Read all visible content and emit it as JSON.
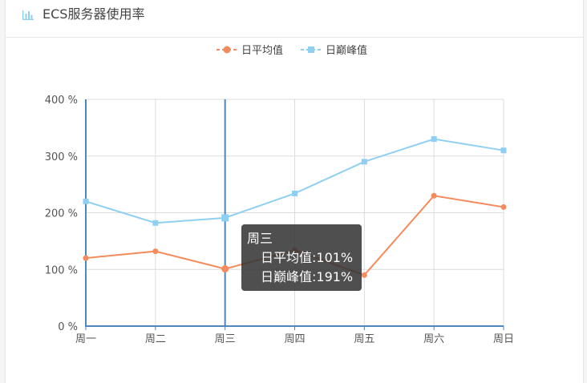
{
  "header": {
    "title": "ECS服务器使用率",
    "icon": "bar-chart-icon"
  },
  "chart_data": {
    "type": "line",
    "categories": [
      "周一",
      "周二",
      "周三",
      "周四",
      "周五",
      "周六",
      "周日"
    ],
    "series": [
      {
        "name": "日平均值",
        "values": [
          120,
          132,
          101,
          134,
          90,
          230,
          210
        ],
        "color": "#f58a5c",
        "marker": "circle"
      },
      {
        "name": "日巅峰值",
        "values": [
          220,
          182,
          191,
          234,
          290,
          330,
          310
        ],
        "color": "#8fd0f2",
        "marker": "square"
      }
    ],
    "ylim": [
      0,
      400
    ],
    "yticks": [
      0,
      100,
      200,
      300,
      400
    ],
    "ytick_suffix": " %",
    "grid": true,
    "legend": "top-center",
    "axis_color": "#4f86bb",
    "highlighted_category": "周三"
  },
  "tooltip": {
    "title": "周三",
    "line1": "日平均值:101%",
    "line2": "日巅峰值:191%"
  }
}
